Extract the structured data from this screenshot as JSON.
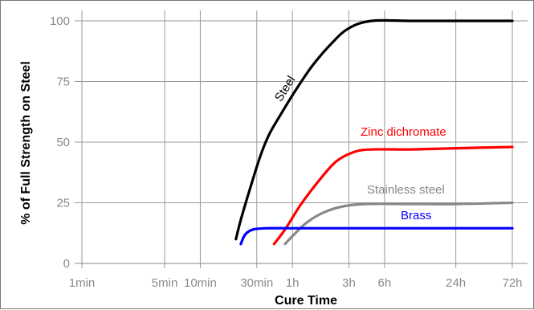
{
  "chart_data": {
    "type": "line",
    "title": "",
    "xlabel": "Cure Time",
    "ylabel": "% of Full Strength on Steel",
    "ylim": [
      0,
      100
    ],
    "yticks": [
      "0",
      "25",
      "50",
      "75",
      "100"
    ],
    "x_scale": "log",
    "xticks": [
      {
        "label": "1min",
        "minutes": 1
      },
      {
        "label": "5min",
        "minutes": 5
      },
      {
        "label": "10min",
        "minutes": 10
      },
      {
        "label": "30min",
        "minutes": 30
      },
      {
        "label": "1h",
        "minutes": 60
      },
      {
        "label": "3h",
        "minutes": 180
      },
      {
        "label": "6h",
        "minutes": 360
      },
      {
        "label": "24h",
        "minutes": 1440
      },
      {
        "label": "72h",
        "minutes": 4320
      }
    ],
    "grid": true,
    "legend": "labels on lines",
    "series": [
      {
        "name": "Steel",
        "color": "#000000",
        "points": [
          [
            20,
            10
          ],
          [
            22,
            18
          ],
          [
            26,
            30
          ],
          [
            32,
            44
          ],
          [
            38,
            53
          ],
          [
            50,
            63
          ],
          [
            65,
            72
          ],
          [
            90,
            82
          ],
          [
            130,
            91
          ],
          [
            180,
            97
          ],
          [
            280,
            100
          ],
          [
            600,
            100
          ],
          [
            1440,
            100
          ],
          [
            4320,
            100
          ]
        ]
      },
      {
        "name": "Zinc dichromate",
        "color": "#ff0000",
        "points": [
          [
            42,
            8
          ],
          [
            52,
            14
          ],
          [
            70,
            24
          ],
          [
            100,
            34
          ],
          [
            140,
            42
          ],
          [
            200,
            46
          ],
          [
            280,
            47
          ],
          [
            600,
            47
          ],
          [
            1440,
            47.5
          ],
          [
            4320,
            48
          ]
        ]
      },
      {
        "name": "Stainless steel",
        "color": "#888888",
        "points": [
          [
            52,
            8
          ],
          [
            62,
            12
          ],
          [
            80,
            17
          ],
          [
            110,
            21
          ],
          [
            160,
            23.5
          ],
          [
            250,
            24.5
          ],
          [
            600,
            24.5
          ],
          [
            1440,
            24.5
          ],
          [
            4320,
            25
          ]
        ]
      },
      {
        "name": "Brass",
        "color": "#0000ff",
        "points": [
          [
            22,
            8
          ],
          [
            24,
            12
          ],
          [
            28,
            14
          ],
          [
            36,
            14.5
          ],
          [
            60,
            14.5
          ],
          [
            300,
            14.5
          ],
          [
            1440,
            14.5
          ],
          [
            4320,
            14.5
          ]
        ]
      }
    ]
  }
}
